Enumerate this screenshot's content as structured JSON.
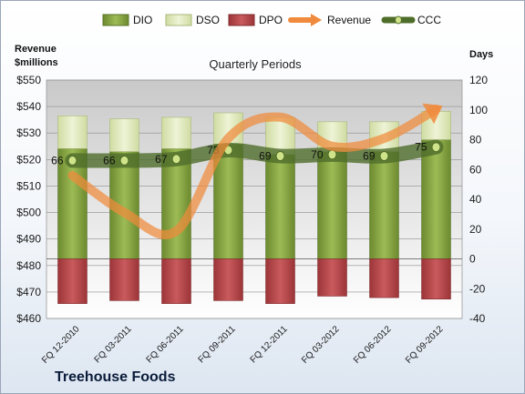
{
  "company": "Treehouse Foods",
  "chart_data": {
    "type": "bar",
    "title": "Quarterly Periods",
    "categories": [
      "FQ 12-2010",
      "FQ 03-2011",
      "FQ 06-2011",
      "FQ 09-2011",
      "FQ 12-2011",
      "FQ 03-2012",
      "FQ 06-2012",
      "FQ 09-2012"
    ],
    "left_axis": {
      "label": [
        "Revenue",
        "$millions"
      ],
      "min": 460,
      "max": 550,
      "step": 10,
      "prefix": "$"
    },
    "right_axis": {
      "label": "Days",
      "min": -40,
      "max": 120,
      "step": 20
    },
    "legend": {
      "position": "top",
      "items": [
        "DIO",
        "DSO",
        "DPO",
        "Revenue",
        "CCC"
      ]
    },
    "colors": {
      "dio": "#7a9b3a",
      "dso": "#dfe8b6",
      "dpo": "#b8474b",
      "revenue": "#f08a3c",
      "ccc": "#4f6d2a",
      "plot_bg_top": "#c9c9c9",
      "plot_bg_bottom": "#ffffff"
    },
    "series": [
      {
        "name": "DIO",
        "axis": "right",
        "values": [
          74,
          72,
          74,
          77,
          70,
          72,
          72,
          80
        ]
      },
      {
        "name": "DSO",
        "axis": "right",
        "values": [
          22,
          22,
          21,
          21,
          25,
          20,
          20,
          19
        ]
      },
      {
        "name": "DPO",
        "axis": "right",
        "values": [
          -30,
          -28,
          -30,
          -28,
          -30,
          -25,
          -26,
          -27
        ]
      },
      {
        "name": "Revenue",
        "axis": "left",
        "values": [
          514,
          500,
          493,
          528,
          536,
          525,
          528,
          539
        ]
      },
      {
        "name": "CCC",
        "axis": "right",
        "values": [
          66,
          66,
          67,
          73,
          69,
          70,
          69,
          75
        ]
      }
    ],
    "ccc_labels": [
      "66",
      "66",
      "67",
      "73",
      "69",
      "70",
      "69",
      "75"
    ]
  }
}
